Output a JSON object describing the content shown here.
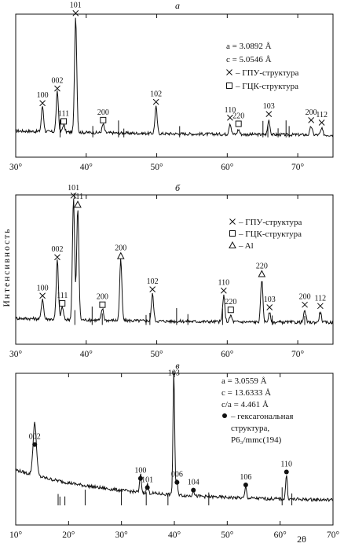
{
  "ylabel": "Интенсивность",
  "chart_data": [
    {
      "panel": "а",
      "type": "line",
      "xlim": [
        30,
        75
      ],
      "xticks": [
        "30°",
        "40°",
        "50°",
        "60°",
        "70°"
      ],
      "xtick_values": [
        30,
        40,
        50,
        60,
        70
      ],
      "xlabel": "",
      "lattice": [
        "a = 3.0892 Å",
        "c = 5.0546 Å"
      ],
      "legend": [
        {
          "marker": "cross",
          "label": "– ГПУ-структура"
        },
        {
          "marker": "square",
          "label": "– ГЦК-структура"
        }
      ],
      "peaks": [
        {
          "x": 33.8,
          "h": 0.21,
          "label": "100",
          "marker": "cross"
        },
        {
          "x": 35.9,
          "h": 0.33,
          "label": "002",
          "marker": "cross"
        },
        {
          "x": 36.8,
          "h": 0.06,
          "label": "111",
          "marker": "square"
        },
        {
          "x": 38.5,
          "h": 0.95,
          "label": "101",
          "marker": "cross"
        },
        {
          "x": 42.4,
          "h": 0.07,
          "label": "200",
          "marker": "square"
        },
        {
          "x": 49.9,
          "h": 0.22,
          "label": "102",
          "marker": "cross"
        },
        {
          "x": 60.4,
          "h": 0.09,
          "label": "110",
          "marker": "cross"
        },
        {
          "x": 61.6,
          "h": 0.04,
          "label": "220",
          "marker": "square"
        },
        {
          "x": 65.9,
          "h": 0.12,
          "label": "103",
          "marker": "cross"
        },
        {
          "x": 71.9,
          "h": 0.07,
          "label": "200",
          "marker": "cross"
        },
        {
          "x": 73.4,
          "h": 0.05,
          "label": "112",
          "marker": "cross"
        }
      ]
    },
    {
      "panel": "б",
      "type": "line",
      "xlim": [
        30,
        75
      ],
      "xticks": [
        "30°",
        "40°",
        "50°",
        "60°",
        "70°"
      ],
      "xtick_values": [
        30,
        40,
        50,
        60,
        70
      ],
      "xlabel": "",
      "lattice": [],
      "legend": [
        {
          "marker": "cross",
          "label": "– ГПУ-структура"
        },
        {
          "marker": "square",
          "label": "– ГЦК-структура"
        },
        {
          "marker": "triangle",
          "label": "– Al"
        }
      ],
      "peaks": [
        {
          "x": 33.8,
          "h": 0.16,
          "label": "100",
          "marker": "cross"
        },
        {
          "x": 35.9,
          "h": 0.46,
          "label": "002",
          "marker": "cross"
        },
        {
          "x": 36.6,
          "h": 0.1,
          "label": "111",
          "marker": "square"
        },
        {
          "x": 38.2,
          "h": 0.94,
          "label": "101",
          "marker": "cross"
        },
        {
          "x": 38.8,
          "h": 0.87,
          "label": "111",
          "marker": "triangle"
        },
        {
          "x": 42.3,
          "h": 0.09,
          "label": "200",
          "marker": "square"
        },
        {
          "x": 44.9,
          "h": 0.47,
          "label": "200",
          "marker": "triangle"
        },
        {
          "x": 49.4,
          "h": 0.21,
          "label": "102",
          "marker": "cross"
        },
        {
          "x": 59.5,
          "h": 0.2,
          "label": "110",
          "marker": "cross"
        },
        {
          "x": 60.5,
          "h": 0.05,
          "label": "220",
          "marker": "square"
        },
        {
          "x": 64.9,
          "h": 0.33,
          "label": "220",
          "marker": "triangle"
        },
        {
          "x": 66.0,
          "h": 0.07,
          "label": "103",
          "marker": "cross"
        },
        {
          "x": 71.0,
          "h": 0.09,
          "label": "200",
          "marker": "cross"
        },
        {
          "x": 73.2,
          "h": 0.08,
          "label": "112",
          "marker": "cross"
        }
      ]
    },
    {
      "panel": "в",
      "type": "line",
      "xlim": [
        10,
        70
      ],
      "xticks": [
        "10°",
        "20°",
        "30°",
        "40°",
        "50°",
        "60°",
        "70°"
      ],
      "xtick_values": [
        10,
        20,
        30,
        40,
        50,
        60,
        70
      ],
      "xlabel": "2θ",
      "lattice": [
        "a = 3.0559 Å",
        "c = 13.6333 Å",
        "c/a = 4.461 Å"
      ],
      "legend": [
        {
          "marker": "dot",
          "label": "– гексагональная"
        },
        {
          "marker": "none",
          "label": "структура,"
        },
        {
          "marker": "none",
          "label": "P6₃/mmc(194)"
        }
      ],
      "peaks": [
        {
          "x": 13.6,
          "h": 0.4,
          "label": "002",
          "marker": "dot"
        },
        {
          "x": 33.6,
          "h": 0.14,
          "label": "100",
          "marker": "dot"
        },
        {
          "x": 34.9,
          "h": 0.07,
          "label": "101",
          "marker": "dot"
        },
        {
          "x": 39.9,
          "h": 0.95,
          "label": "103",
          "marker": "none"
        },
        {
          "x": 40.5,
          "h": 0.11,
          "label": "006",
          "marker": "dot"
        },
        {
          "x": 43.6,
          "h": 0.05,
          "label": "104",
          "marker": "dot"
        },
        {
          "x": 53.5,
          "h": 0.09,
          "label": "106",
          "marker": "dot"
        },
        {
          "x": 61.2,
          "h": 0.19,
          "label": "110",
          "marker": "dot"
        }
      ]
    }
  ]
}
